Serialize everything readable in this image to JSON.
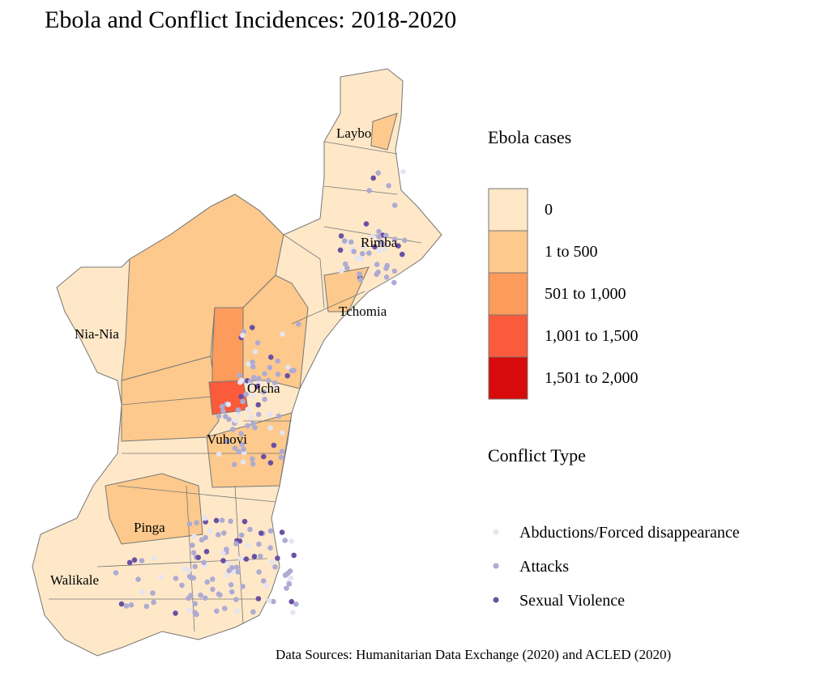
{
  "title": "Ebola and Conflict Incidences: 2018-2020",
  "legend_fill": {
    "title": "Ebola cases",
    "items": [
      {
        "label": "0",
        "color": "#fee8c8"
      },
      {
        "label": "1 to 500",
        "color": "#fdc98c"
      },
      {
        "label": "501 to 1,000",
        "color": "#fc9b5c"
      },
      {
        "label": "1,001 to 1,500",
        "color": "#fb5a3b"
      },
      {
        "label": "1,501 to 2,000",
        "color": "#d70b0b"
      }
    ]
  },
  "legend_points": {
    "title": "Conflict Type",
    "items": [
      {
        "label": "Abductions/Forced disappearance",
        "color": "#e6e4f1"
      },
      {
        "label": "Attacks",
        "color": "#aeabd3"
      },
      {
        "label": "Sexual Violence",
        "color": "#6a50a3"
      }
    ]
  },
  "places": [
    "Laybo",
    "Rimba",
    "Tchomia",
    "Nia-Nia",
    "Oicha",
    "Vuhovi",
    "Pinga",
    "Walikale"
  ],
  "source": "Data Sources: Humanitarian Data Exchange (2020) and ACLED (2020)"
}
